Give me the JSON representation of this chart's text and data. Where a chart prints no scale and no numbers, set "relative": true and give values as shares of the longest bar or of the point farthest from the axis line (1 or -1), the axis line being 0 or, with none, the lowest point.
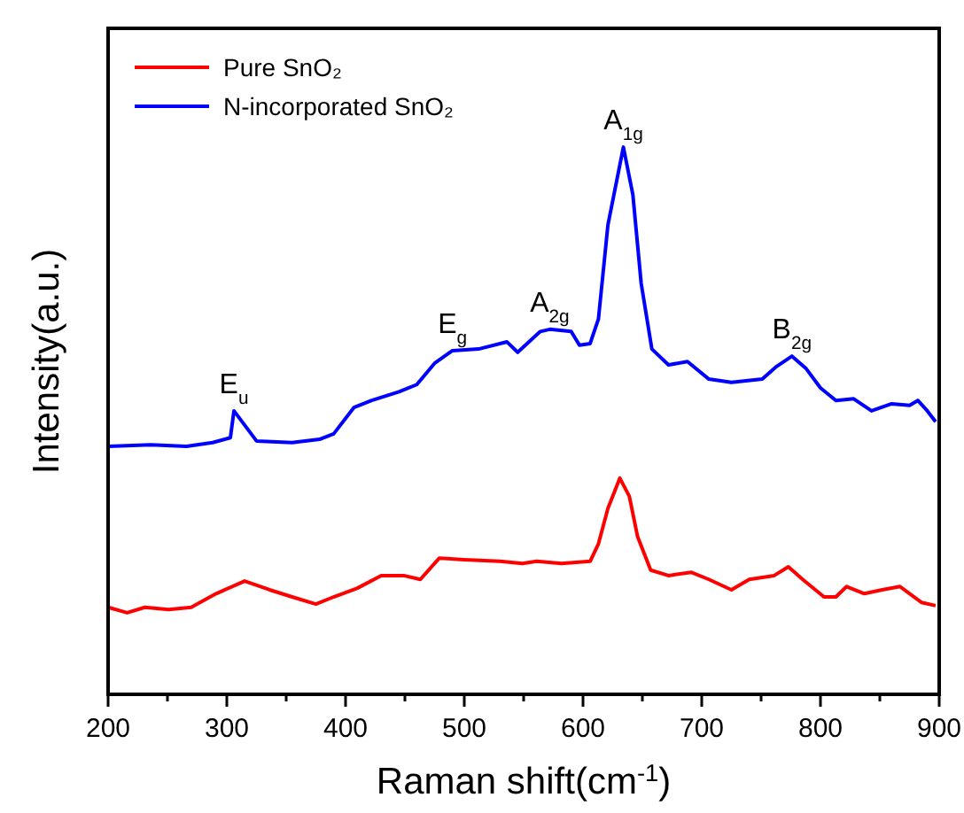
{
  "chart_data": {
    "type": "line",
    "relative": true,
    "xlabel": "Raman shift(cm$^{-1}$)",
    "ylabel": "Intensity(a.u.)",
    "xlim": [
      200,
      900
    ],
    "xticks": [
      200,
      {
        "value": 250,
        "label": null
      },
      300,
      {
        "value": 350,
        "label": null
      },
      400,
      {
        "value": 450,
        "label": null
      },
      500,
      {
        "value": 550,
        "label": null
      },
      600,
      {
        "value": 650,
        "label": null
      },
      700,
      {
        "value": 750,
        "label": null
      },
      800,
      {
        "value": 850,
        "label": null
      },
      900
    ],
    "legend": "top left",
    "grid": false,
    "line_style": "solid",
    "series": [
      {
        "name": "Pure SnO₂",
        "color": "#ff0000",
        "x": [
          200,
          216,
          231,
          251,
          270,
          291,
          315,
          336,
          355,
          375,
          390,
          410,
          430,
          449,
          463,
          479,
          500,
          530,
          549,
          561,
          582,
          606,
          613,
          621,
          631,
          639,
          646,
          657,
          672,
          691,
          706,
          725,
          740,
          761,
          773,
          785,
          803,
          813,
          822,
          837,
          852,
          867,
          885,
          897
        ],
        "values": [
          0.159,
          0.149,
          0.159,
          0.155,
          0.159,
          0.184,
          0.207,
          0.191,
          0.178,
          0.165,
          0.178,
          0.194,
          0.217,
          0.217,
          0.21,
          0.249,
          0.246,
          0.243,
          0.239,
          0.243,
          0.239,
          0.243,
          0.275,
          0.34,
          0.395,
          0.362,
          0.288,
          0.227,
          0.217,
          0.223,
          0.21,
          0.191,
          0.21,
          0.217,
          0.233,
          0.21,
          0.178,
          0.178,
          0.197,
          0.184,
          0.191,
          0.197,
          0.168,
          0.162
        ]
      },
      {
        "name": "N-incorporated SnO₂",
        "color": "#0000ff",
        "x": [
          200,
          236,
          266,
          288,
          303,
          306,
          325,
          355,
          378,
          390,
          407,
          422,
          445,
          460,
          475,
          490,
          512,
          536,
          545,
          564,
          572,
          590,
          597,
          606,
          613,
          621,
          634,
          642,
          649,
          658,
          672,
          688,
          706,
          725,
          751,
          763,
          776,
          788,
          800,
          813,
          828,
          843,
          860,
          875,
          882,
          890,
          897
        ],
        "values": [
          0.453,
          0.456,
          0.453,
          0.46,
          0.469,
          0.518,
          0.463,
          0.46,
          0.466,
          0.476,
          0.524,
          0.537,
          0.553,
          0.566,
          0.605,
          0.628,
          0.631,
          0.644,
          0.625,
          0.663,
          0.667,
          0.663,
          0.638,
          0.641,
          0.686,
          0.858,
          1,
          0.913,
          0.751,
          0.631,
          0.602,
          0.608,
          0.576,
          0.57,
          0.576,
          0.599,
          0.618,
          0.595,
          0.56,
          0.537,
          0.54,
          0.518,
          0.531,
          0.528,
          0.537,
          0.518,
          0.498
        ]
      }
    ],
    "annotations": [
      {
        "text": "E$_{u}$",
        "x": 306,
        "y": 0.518
      },
      {
        "text": "E$_{g}$",
        "x": 490,
        "y": 0.628
      },
      {
        "text": "A$_{2g}$",
        "x": 572,
        "y": 0.667
      },
      {
        "text": "A$_{1g}$",
        "x": 634,
        "y": 1
      },
      {
        "text": "B$_{2g}$",
        "x": 776,
        "y": 0.618
      }
    ]
  }
}
